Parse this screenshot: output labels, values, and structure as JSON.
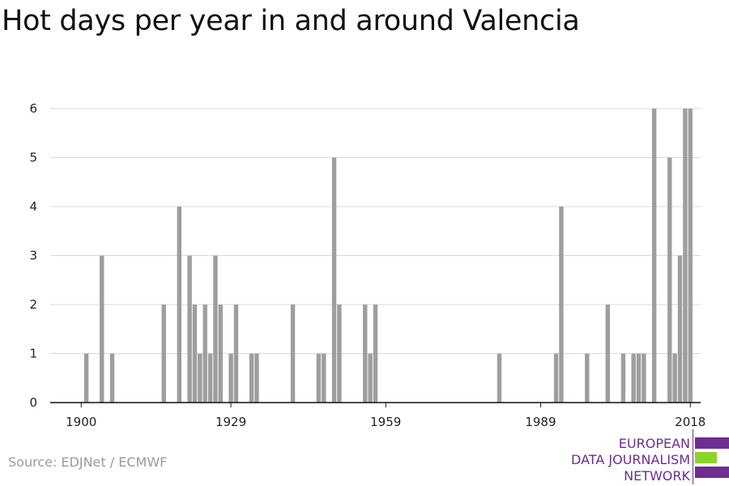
{
  "title": "Hot days per year in and around Valencia",
  "source": "Source: EDJNet / ECMWF",
  "logo": {
    "lines": [
      "EUROPEAN",
      "DATA JOURNALISM",
      "NETWORK"
    ],
    "colors": {
      "purple": "#6f2c91",
      "green": "#8dd42a"
    }
  },
  "colors": {
    "bar": "#9e9e9e",
    "grid": "#d9d9d9",
    "axis": "#111111"
  },
  "chart_data": {
    "type": "bar",
    "title": "Hot days per year in and around Valencia",
    "xlabel": "",
    "ylabel": "",
    "xlim": [
      1894,
      2020
    ],
    "ylim": [
      0,
      6
    ],
    "yticks": [
      0,
      1,
      2,
      3,
      4,
      5,
      6
    ],
    "xticks": [
      1900,
      1929,
      1959,
      1989,
      2018
    ],
    "grid": true,
    "x": [
      1901,
      1904,
      1906,
      1916,
      1919,
      1921,
      1922,
      1923,
      1924,
      1925,
      1926,
      1927,
      1929,
      1930,
      1933,
      1934,
      1941,
      1946,
      1947,
      1949,
      1950,
      1955,
      1956,
      1957,
      1981,
      1992,
      1993,
      1998,
      2002,
      2005,
      2007,
      2008,
      2009,
      2011,
      2014,
      2015,
      2016,
      2017,
      2018
    ],
    "values": [
      1,
      3,
      1,
      2,
      4,
      3,
      2,
      1,
      2,
      1,
      3,
      2,
      1,
      2,
      1,
      1,
      2,
      1,
      1,
      5,
      2,
      2,
      1,
      2,
      1,
      1,
      4,
      1,
      2,
      1,
      1,
      1,
      1,
      6,
      5,
      1,
      3,
      6,
      6
    ]
  }
}
